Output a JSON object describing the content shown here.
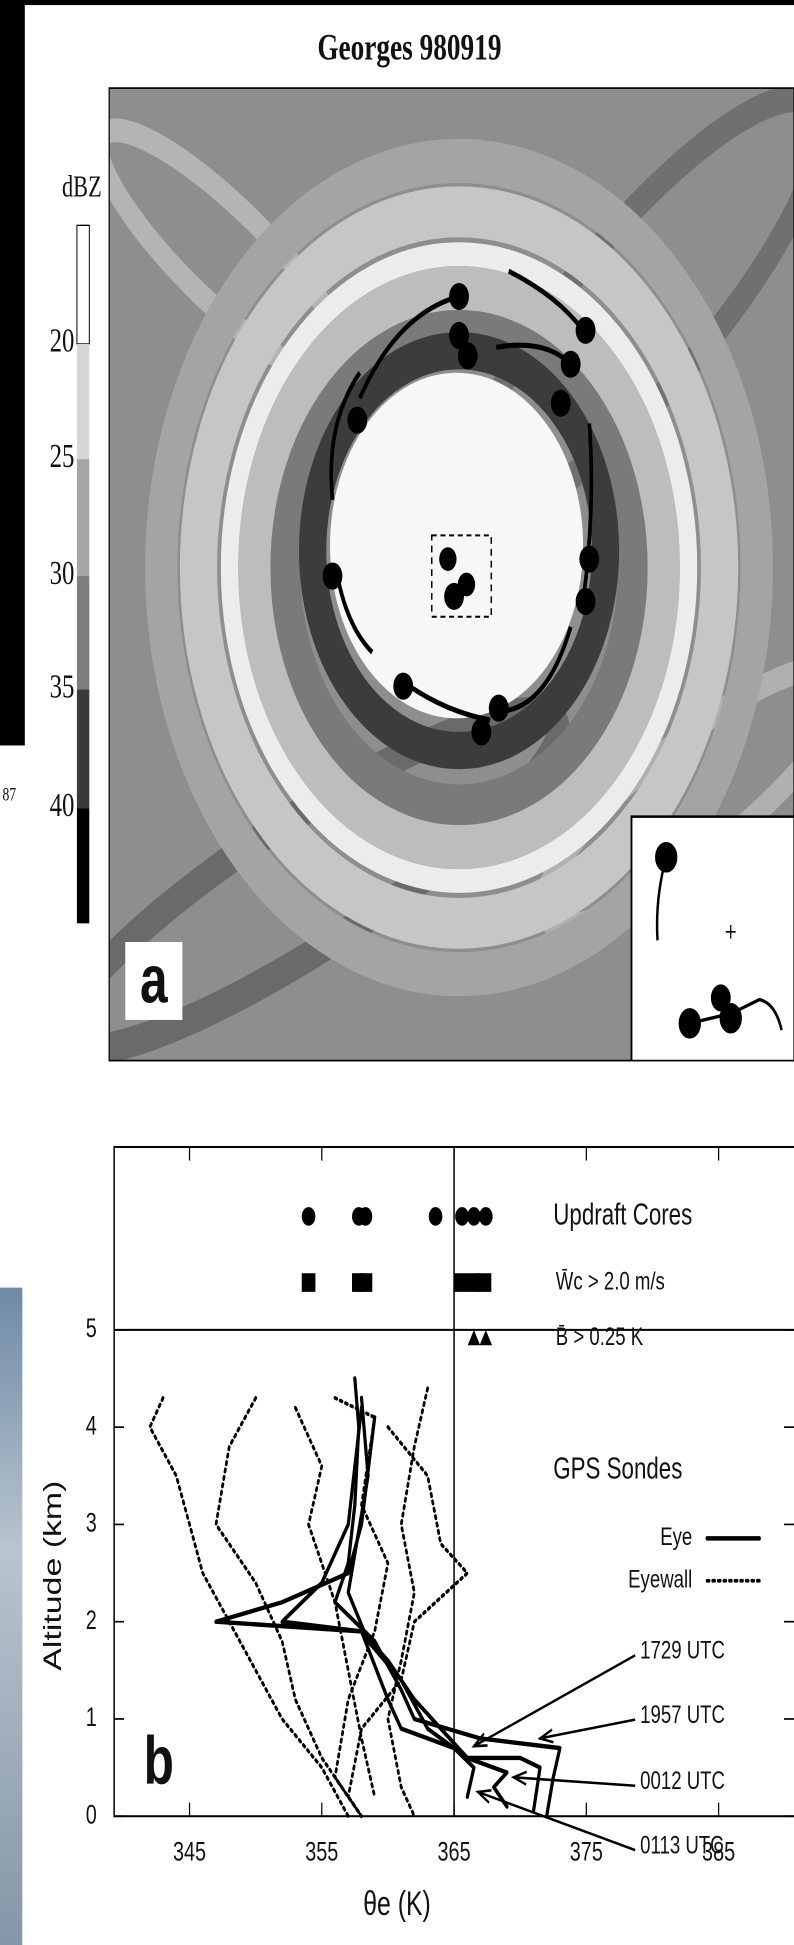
{
  "figure": {
    "title": "Georges 980919",
    "panel_a_label": "a",
    "panel_b_label": "b",
    "colorbar": {
      "label": "dBZ",
      "ticks": [
        20,
        25,
        30,
        35,
        40
      ]
    },
    "cropped_fragment": "87"
  },
  "chart_data": {
    "type": "line",
    "xlabel": "θe (K)",
    "ylabel": "Altitude (km)",
    "xlim": [
      339.3,
      390.7
    ],
    "ylim": [
      0,
      6.88
    ],
    "xticks": [
      345,
      355,
      365,
      375,
      385
    ],
    "yticks": [
      0,
      1,
      2,
      3,
      4,
      5
    ],
    "reference_line": 365,
    "cores": {
      "title": "Updraft Cores",
      "circle": [
        354,
        357.8,
        358.3,
        363.6,
        365.6,
        366.5,
        367.4
      ],
      "square": [
        354,
        357.8,
        358.3,
        365.5,
        366.5,
        367.3
      ],
      "triangle": [
        366.5,
        367.4
      ],
      "square_label": "W̄c > 2.0 m/s",
      "triangle_label": "B̄ > 0.25 K"
    },
    "legend_title": "GPS Sondes",
    "annotations": [
      "1729 UTC",
      "1957 UTC",
      "0012 UTC",
      "0113 UTC"
    ],
    "series": [
      {
        "name": "Eye",
        "color": "#000000",
        "style": "solid",
        "x": [
          372,
          372.5,
          373,
          367,
          362,
          361,
          359,
          356,
          357,
          357.5,
          357.8,
          357.5
        ],
        "values": [
          0,
          0.4,
          0.7,
          0.8,
          1.0,
          1.3,
          1.8,
          2.2,
          2.6,
          3.2,
          4.0,
          4.5
        ]
      },
      {
        "name": null,
        "color": "#000000",
        "style": "solid",
        "x": [
          371,
          371.5,
          370,
          366,
          364,
          362,
          360,
          358,
          352,
          355,
          357,
          358
        ],
        "values": [
          0.05,
          0.5,
          0.6,
          0.6,
          0.9,
          1.2,
          1.6,
          1.9,
          2.0,
          2.4,
          3.0,
          4.2
        ]
      },
      {
        "name": null,
        "color": "#000000",
        "style": "solid",
        "x": [
          369,
          368,
          369,
          366,
          363,
          361,
          358.5,
          357,
          358.5,
          358
        ],
        "values": [
          0.1,
          0.3,
          0.45,
          0.6,
          0.9,
          1.4,
          1.8,
          2.3,
          3.5,
          4.3
        ]
      },
      {
        "name": null,
        "color": "#000000",
        "style": "solid",
        "x": [
          366,
          366.5,
          365,
          361,
          360,
          358,
          347,
          352,
          357,
          358,
          359
        ],
        "values": [
          0.2,
          0.5,
          0.7,
          0.9,
          1.2,
          1.9,
          2.0,
          2.2,
          2.5,
          3.0,
          4.1
        ]
      },
      {
        "name": "Eyewall",
        "color": "#000000",
        "style": "dotted",
        "x": [
          343,
          342,
          344,
          345,
          346,
          348,
          350,
          352,
          355,
          357
        ],
        "values": [
          4.3,
          4.0,
          3.5,
          3.0,
          2.5,
          2.0,
          1.5,
          1.0,
          0.5,
          0
        ]
      },
      {
        "name": null,
        "color": "#000000",
        "style": "dotted",
        "x": [
          350,
          348,
          347,
          350,
          352,
          353,
          355,
          358
        ],
        "values": [
          4.3,
          3.8,
          3.0,
          2.4,
          1.8,
          1.2,
          0.6,
          0
        ]
      },
      {
        "name": null,
        "color": "#000000",
        "style": "dotted",
        "x": [
          353,
          355,
          354,
          356,
          357,
          358,
          359
        ],
        "values": [
          4.2,
          3.6,
          3.0,
          2.2,
          1.5,
          0.8,
          0.2
        ]
      },
      {
        "name": null,
        "color": "#000000",
        "style": "dotted",
        "x": [
          363,
          362,
          361,
          362,
          361,
          360,
          361,
          362
        ],
        "values": [
          4.4,
          3.8,
          3.0,
          2.3,
          1.6,
          1.0,
          0.3,
          0
        ]
      },
      {
        "name": null,
        "color": "#000000",
        "style": "dotted",
        "x": [
          360,
          363,
          364,
          366,
          362,
          361,
          358,
          357
        ],
        "values": [
          4.0,
          3.5,
          2.8,
          2.5,
          2.0,
          1.4,
          0.9,
          0.2
        ]
      },
      {
        "name": null,
        "color": "#000000",
        "style": "dotted",
        "x": [
          356,
          359,
          358,
          360,
          359,
          357,
          356,
          358
        ],
        "values": [
          4.3,
          4.1,
          3.2,
          2.6,
          1.9,
          1.2,
          0.4,
          0
        ]
      }
    ]
  }
}
